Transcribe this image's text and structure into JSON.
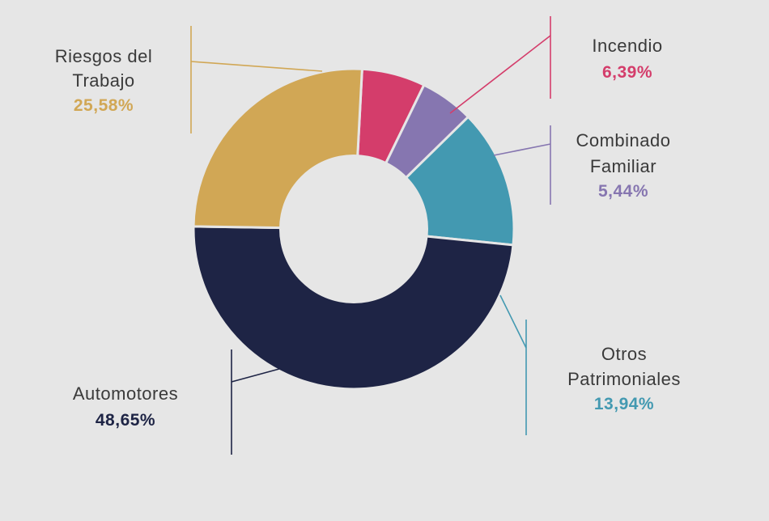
{
  "chart_data": {
    "type": "pie",
    "variant": "donut",
    "title": "",
    "slices": [
      {
        "key": "incendio",
        "label_lines": [
          "Incendio"
        ],
        "value_label": "6,39%",
        "value": 6.39,
        "color": "#d43d6b"
      },
      {
        "key": "combinado",
        "label_lines": [
          "Combinado",
          "Familiar"
        ],
        "value_label": "5,44%",
        "value": 5.44,
        "color": "#8676b0"
      },
      {
        "key": "otros",
        "label_lines": [
          "Otros",
          "Patrimoniales"
        ],
        "value_label": "13,94%",
        "value": 13.94,
        "color": "#4399b1"
      },
      {
        "key": "automotores",
        "label_lines": [
          "Automotores"
        ],
        "value_label": "48,65%",
        "value": 48.65,
        "color": "#1e2445"
      },
      {
        "key": "riesgos",
        "label_lines": [
          "Riesgos del",
          "Trabajo"
        ],
        "value_label": "25,58%",
        "value": 25.58,
        "color": "#d1a755"
      }
    ]
  }
}
